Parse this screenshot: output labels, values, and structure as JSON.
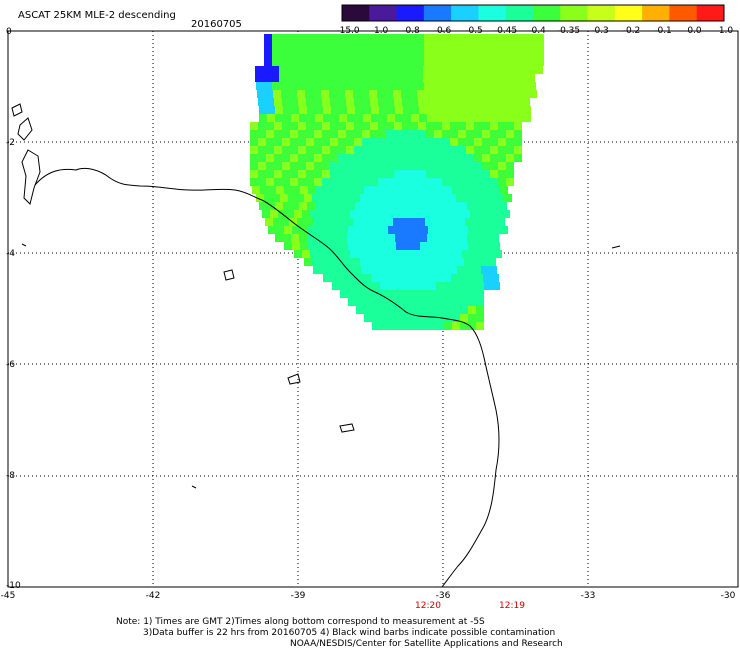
{
  "title": "ASCAT 25KM MLE-2 descending",
  "date": "20160705",
  "colorbar": {
    "labels": [
      "-15.0",
      "-1.0",
      "-0.8",
      "-0.6",
      "-0.5",
      "-0.45",
      "-0.4",
      "-0.35",
      "-0.3",
      "-0.2",
      "-0.1",
      "0.0",
      "1.0"
    ],
    "colors": [
      "#2a0a3a",
      "#4a1a9a",
      "#1a1aff",
      "#1a7aff",
      "#1ad0ff",
      "#1affe0",
      "#1aff9a",
      "#3aff3a",
      "#8aff1a",
      "#c8ff1a",
      "#ffff1a",
      "#ffb000",
      "#ff5a00",
      "#ff1a1a"
    ]
  },
  "axes": {
    "y_ticks": [
      "0",
      "-2",
      "-4",
      "-6",
      "-8",
      "-10"
    ],
    "x_ticks": [
      "-45",
      "-42",
      "-39",
      "-36",
      "-33",
      "-30"
    ]
  },
  "time_labels": [
    {
      "text": "12:20",
      "color": "#d00000"
    },
    {
      "text": "12:19",
      "color": "#d00000"
    }
  ],
  "notes": [
    "Note: 1) Times are GMT 2)Times along bottom correspond to measurement at -5S",
    "3)Data buffer is 22 hrs from 20160705 4) Black wind barbs indicate possible contamination",
    "NOAA/NESDIS/Center for Satellite Applications and Research"
  ]
}
